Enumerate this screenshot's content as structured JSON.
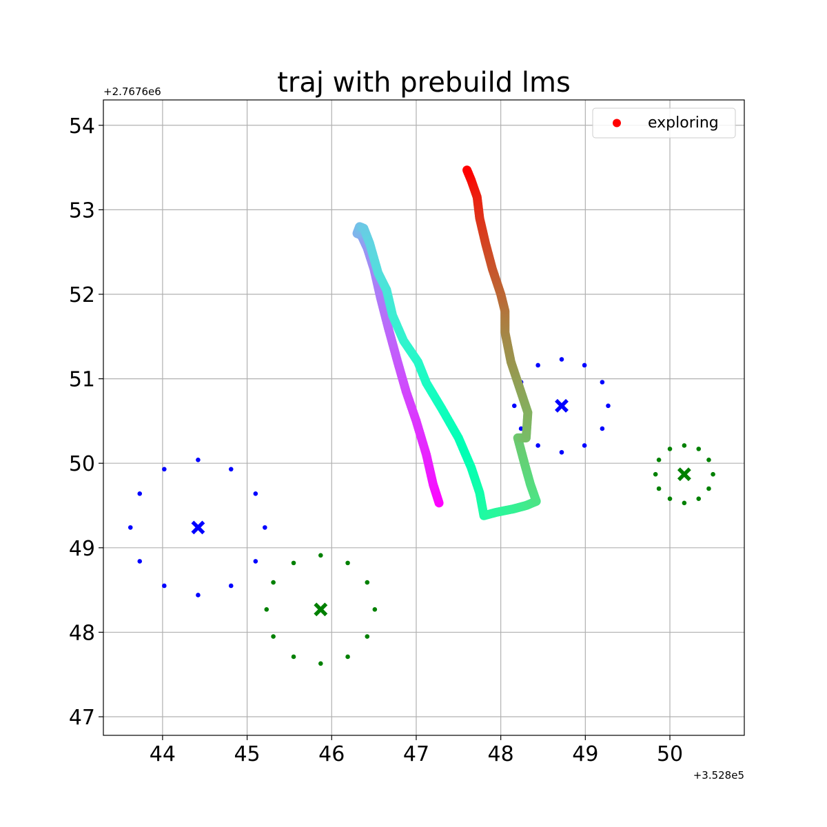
{
  "chart_data": {
    "type": "scatter",
    "title": "traj with prebuild lms",
    "xlabel": "",
    "ylabel": "",
    "x_offset_label": "+3.528e5",
    "y_offset_label": "+2.7676e6",
    "xlim": [
      43.3,
      50.88
    ],
    "ylim": [
      46.78,
      54.3
    ],
    "xticks": [
      44,
      45,
      46,
      47,
      48,
      49,
      50
    ],
    "yticks": [
      47,
      48,
      49,
      50,
      51,
      52,
      53,
      54
    ],
    "grid": true,
    "legend": {
      "location": "top-right",
      "entries": [
        {
          "label": "exploring",
          "color": "#ff0000"
        }
      ]
    },
    "trajectory": {
      "colormap": "rainbow",
      "points": [
        [
          47.27,
          49.53
        ],
        [
          47.2,
          49.75
        ],
        [
          47.12,
          50.1
        ],
        [
          47.0,
          50.5
        ],
        [
          46.88,
          50.85
        ],
        [
          46.78,
          51.2
        ],
        [
          46.67,
          51.6
        ],
        [
          46.58,
          51.95
        ],
        [
          46.5,
          52.3
        ],
        [
          46.42,
          52.55
        ],
        [
          46.35,
          52.7
        ],
        [
          46.3,
          52.72
        ],
        [
          46.33,
          52.8
        ],
        [
          46.38,
          52.78
        ],
        [
          46.45,
          52.6
        ],
        [
          46.55,
          52.25
        ],
        [
          46.65,
          52.05
        ],
        [
          46.72,
          51.75
        ],
        [
          46.85,
          51.45
        ],
        [
          47.02,
          51.2
        ],
        [
          47.12,
          50.95
        ],
        [
          47.3,
          50.65
        ],
        [
          47.5,
          50.3
        ],
        [
          47.65,
          49.95
        ],
        [
          47.75,
          49.65
        ],
        [
          47.8,
          49.38
        ],
        [
          47.95,
          49.42
        ],
        [
          48.15,
          49.46
        ],
        [
          48.3,
          49.5
        ],
        [
          48.42,
          49.55
        ],
        [
          48.35,
          49.75
        ],
        [
          48.28,
          50.0
        ],
        [
          48.2,
          50.3
        ],
        [
          48.3,
          50.3
        ],
        [
          48.32,
          50.6
        ],
        [
          48.22,
          50.9
        ],
        [
          48.12,
          51.2
        ],
        [
          48.05,
          51.55
        ],
        [
          48.05,
          51.8
        ],
        [
          48.0,
          52.0
        ],
        [
          47.9,
          52.3
        ],
        [
          47.82,
          52.6
        ],
        [
          47.75,
          52.9
        ],
        [
          47.72,
          53.15
        ],
        [
          47.65,
          53.35
        ],
        [
          47.6,
          53.47
        ]
      ]
    },
    "landmark_groups": [
      {
        "color": "#0000ff",
        "center": [
          44.42,
          49.24
        ],
        "points": [
          [
            44.42,
            50.04
          ],
          [
            44.81,
            49.93
          ],
          [
            45.1,
            49.64
          ],
          [
            45.21,
            49.24
          ],
          [
            45.1,
            48.84
          ],
          [
            44.81,
            48.55
          ],
          [
            44.42,
            48.44
          ],
          [
            44.02,
            48.55
          ],
          [
            43.73,
            48.84
          ],
          [
            43.62,
            49.24
          ],
          [
            43.73,
            49.64
          ],
          [
            44.02,
            49.93
          ]
        ]
      },
      {
        "color": "#0000ff",
        "center": [
          48.72,
          50.68
        ],
        "points": [
          [
            48.72,
            51.23
          ],
          [
            48.99,
            51.16
          ],
          [
            49.2,
            50.96
          ],
          [
            49.27,
            50.68
          ],
          [
            49.2,
            50.41
          ],
          [
            48.99,
            50.21
          ],
          [
            48.72,
            50.13
          ],
          [
            48.44,
            50.21
          ],
          [
            48.24,
            50.41
          ],
          [
            48.16,
            50.68
          ],
          [
            48.24,
            50.96
          ],
          [
            48.44,
            51.16
          ]
        ]
      },
      {
        "color": "#008000",
        "center": [
          45.87,
          48.27
        ],
        "points": [
          [
            45.87,
            48.91
          ],
          [
            46.19,
            48.82
          ],
          [
            46.42,
            48.59
          ],
          [
            46.51,
            48.27
          ],
          [
            46.42,
            47.95
          ],
          [
            46.19,
            47.71
          ],
          [
            45.87,
            47.63
          ],
          [
            45.55,
            47.71
          ],
          [
            45.31,
            47.95
          ],
          [
            45.23,
            48.27
          ],
          [
            45.31,
            48.59
          ],
          [
            45.55,
            48.82
          ]
        ]
      },
      {
        "color": "#008000",
        "center": [
          50.17,
          49.87
        ],
        "points": [
          [
            50.17,
            50.21
          ],
          [
            50.34,
            50.17
          ],
          [
            50.46,
            50.04
          ],
          [
            50.51,
            49.87
          ],
          [
            50.46,
            49.7
          ],
          [
            50.34,
            49.58
          ],
          [
            50.17,
            49.53
          ],
          [
            50.0,
            49.58
          ],
          [
            49.87,
            49.7
          ],
          [
            49.83,
            49.87
          ],
          [
            49.87,
            50.04
          ],
          [
            50.0,
            50.17
          ]
        ]
      }
    ]
  }
}
